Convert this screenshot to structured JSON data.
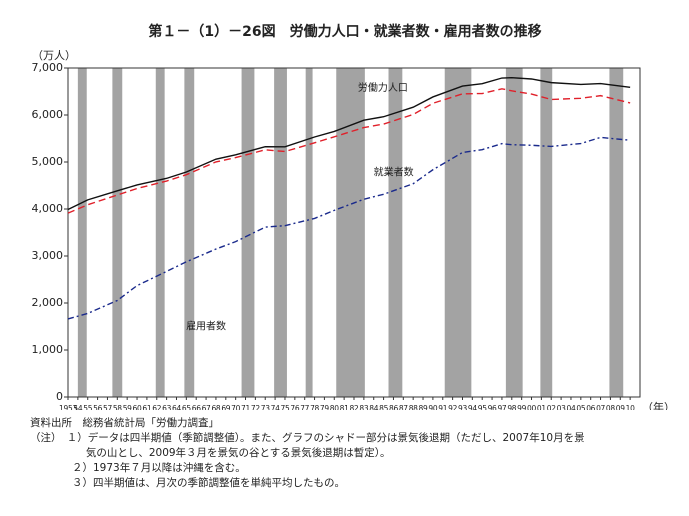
{
  "chart_data": {
    "type": "line",
    "title": "第１－（1）－26図　労働力人口・就業者数・雇用者数の推移",
    "y_unit": "（万人）",
    "x_unit": "（年）",
    "x": [
      1953,
      1955,
      1958,
      1960,
      1963,
      1965,
      1968,
      1970,
      1973,
      1975,
      1978,
      1980,
      1983,
      1985,
      1988,
      1990,
      1993,
      1995,
      1997,
      1998,
      2000,
      2002,
      2005,
      2007,
      2010
    ],
    "series": [
      {
        "name": "労働力人口",
        "color": "#111111",
        "dash": "none",
        "values": [
          3989,
          4194,
          4387,
          4511,
          4652,
          4787,
          5061,
          5153,
          5326,
          5323,
          5532,
          5650,
          5889,
          5963,
          6166,
          6384,
          6615,
          6666,
          6787,
          6793,
          6766,
          6689,
          6651,
          6669,
          6590
        ]
      },
      {
        "name": "就業者数",
        "color": "#e0202a",
        "dash": "7 4",
        "values": [
          3913,
          4090,
          4298,
          4436,
          4595,
          4730,
          5002,
          5094,
          5259,
          5223,
          5408,
          5536,
          5733,
          5807,
          6011,
          6249,
          6450,
          6457,
          6557,
          6514,
          6446,
          6330,
          6356,
          6412,
          6257
        ]
      },
      {
        "name": "雇用者数",
        "color": "#1a2a8c",
        "dash": "6 3 2 3",
        "values": [
          1660,
          1778,
          2054,
          2370,
          2672,
          2876,
          3148,
          3306,
          3615,
          3646,
          3799,
          3971,
          4208,
          4313,
          4538,
          4835,
          5202,
          5263,
          5391,
          5368,
          5356,
          5331,
          5393,
          5523,
          5463
        ]
      }
    ],
    "shaded_periods": [
      [
        1954.0,
        1954.9
      ],
      [
        1957.5,
        1958.5
      ],
      [
        1961.9,
        1962.8
      ],
      [
        1964.8,
        1965.8
      ],
      [
        1970.6,
        1971.9
      ],
      [
        1973.9,
        1975.2
      ],
      [
        1977.1,
        1977.8
      ],
      [
        1980.2,
        1983.1
      ],
      [
        1985.5,
        1986.9
      ],
      [
        1991.2,
        1993.9
      ],
      [
        1997.4,
        1999.1
      ],
      [
        2000.9,
        2002.1
      ],
      [
        2007.9,
        2009.3
      ]
    ],
    "ylim": [
      0,
      7000
    ],
    "yticks": [
      0,
      {
        "value": 1000,
        "label": "1,000"
      },
      {
        "value": 2000,
        "label": "2,000"
      },
      {
        "value": 3000,
        "label": "3,000"
      },
      {
        "value": 4000,
        "label": "4,000"
      },
      {
        "value": 5000,
        "label": "5,000"
      },
      {
        "value": 6000,
        "label": "6,000"
      },
      {
        "value": 7000,
        "label": "7,000"
      }
    ],
    "xlim": [
      1953,
      2011
    ],
    "xticks": [
      1953,
      {
        "value": 1954,
        "label": "54"
      },
      {
        "value": 1955,
        "label": "55"
      },
      {
        "value": 1956,
        "label": "56"
      },
      {
        "value": 1957,
        "label": "57"
      },
      {
        "value": 1958,
        "label": "58"
      },
      {
        "value": 1959,
        "label": "59"
      },
      {
        "value": 1960,
        "label": "60"
      },
      {
        "value": 1961,
        "label": "61"
      },
      {
        "value": 1962,
        "label": "62"
      },
      {
        "value": 1963,
        "label": "63"
      },
      {
        "value": 1964,
        "label": "64"
      },
      {
        "value": 1965,
        "label": "65"
      },
      {
        "value": 1966,
        "label": "66"
      },
      {
        "value": 1967,
        "label": "67"
      },
      {
        "value": 1968,
        "label": "68"
      },
      {
        "value": 1969,
        "label": "69"
      },
      {
        "value": 1970,
        "label": "70"
      },
      {
        "value": 1971,
        "label": "71"
      },
      {
        "value": 1972,
        "label": "72"
      },
      {
        "value": 1973,
        "label": "73"
      },
      {
        "value": 1974,
        "label": "74"
      },
      {
        "value": 1975,
        "label": "75"
      },
      {
        "value": 1976,
        "label": "76"
      },
      {
        "value": 1977,
        "label": "77"
      },
      {
        "value": 1978,
        "label": "78"
      },
      {
        "value": 1979,
        "label": "79"
      },
      {
        "value": 1980,
        "label": "80"
      },
      {
        "value": 1981,
        "label": "81"
      },
      {
        "value": 1982,
        "label": "82"
      },
      {
        "value": 1983,
        "label": "83"
      },
      {
        "value": 1984,
        "label": "84"
      },
      {
        "value": 1985,
        "label": "85"
      },
      {
        "value": 1986,
        "label": "86"
      },
      {
        "value": 1987,
        "label": "87"
      },
      {
        "value": 1988,
        "label": "88"
      },
      {
        "value": 1989,
        "label": "89"
      },
      {
        "value": 1990,
        "label": "90"
      },
      {
        "value": 1991,
        "label": "91"
      },
      {
        "value": 1992,
        "label": "92"
      },
      {
        "value": 1993,
        "label": "93"
      },
      {
        "value": 1994,
        "label": "94"
      },
      {
        "value": 1995,
        "label": "95"
      },
      {
        "value": 1996,
        "label": "96"
      },
      {
        "value": 1997,
        "label": "97"
      },
      {
        "value": 1998,
        "label": "98"
      },
      {
        "value": 1999,
        "label": "99"
      },
      {
        "value": 2000,
        "label": "00"
      },
      {
        "value": 2001,
        "label": "01"
      },
      {
        "value": 2002,
        "label": "02"
      },
      {
        "value": 2003,
        "label": "03"
      },
      {
        "value": 2004,
        "label": "04"
      },
      {
        "value": 2005,
        "label": "05"
      },
      {
        "value": 2006,
        "label": "06"
      },
      {
        "value": 2007,
        "label": "07"
      },
      {
        "value": 2008,
        "label": "08"
      },
      {
        "value": 2009,
        "label": "09"
      },
      {
        "value": 2010,
        "label": "10"
      }
    ],
    "notes": [
      "資料出所　総務省統計局「労働力調査」",
      "（注）　１）データは四半期値（季節調整値）。また、グラフのシャドー部分は景気後退期（ただし、2007年10月を景",
      "　　　　　 気の山とし、2009年３月を景気の谷とする景気後退期は暫定）。",
      "　　　　２）1973年７月以降は沖縄を含む。",
      "　　　　３）四半期値は、月次の季節調整値を単純平均したもの。"
    ]
  }
}
